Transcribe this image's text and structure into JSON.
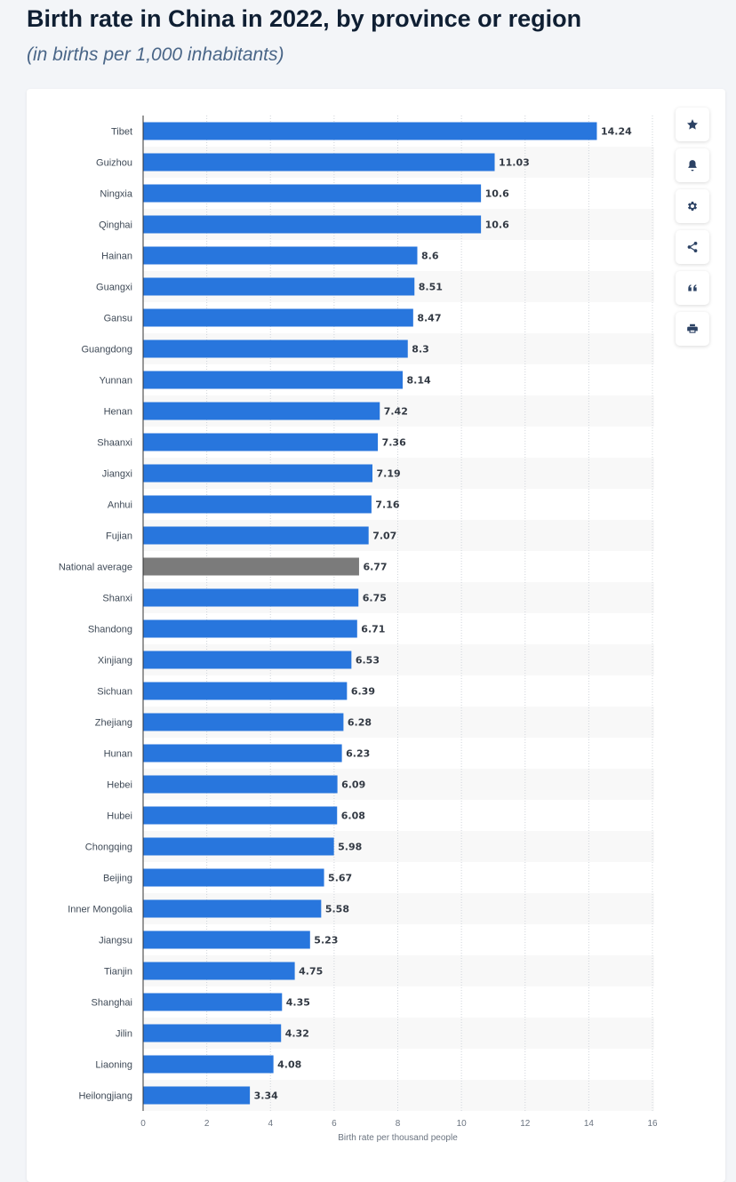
{
  "page": {
    "title": "Birth rate in China in 2022, by province or region",
    "subtitle": "(in births per 1,000 inhabitants)"
  },
  "toolbar": {
    "buttons": [
      {
        "name": "favorite-button",
        "icon": "star-icon"
      },
      {
        "name": "notification-button",
        "icon": "bell-icon"
      },
      {
        "name": "settings-button",
        "icon": "gear-icon"
      },
      {
        "name": "share-button",
        "icon": "share-icon"
      },
      {
        "name": "cite-button",
        "icon": "quote-icon"
      },
      {
        "name": "print-button",
        "icon": "printer-icon"
      }
    ]
  },
  "colors": {
    "bar": "#2876dd",
    "highlight_bar": "#7b7b7b",
    "stripe": "#f8f8f8",
    "grid": "#cfd4da"
  },
  "chart_data": {
    "type": "bar",
    "orientation": "horizontal",
    "title": "Birth rate in China in 2022, by province or region",
    "subtitle": "(in births per 1,000 inhabitants)",
    "xlabel": "Birth rate per thousand people",
    "ylabel": "",
    "xlim": [
      0,
      16
    ],
    "xticks": [
      0,
      2,
      4,
      6,
      8,
      10,
      12,
      14,
      16
    ],
    "grid": true,
    "highlight": "National average",
    "categories": [
      "Tibet",
      "Guizhou",
      "Ningxia",
      "Qinghai",
      "Hainan",
      "Guangxi",
      "Gansu",
      "Guangdong",
      "Yunnan",
      "Henan",
      "Shaanxi",
      "Jiangxi",
      "Anhui",
      "Fujian",
      "National average",
      "Shanxi",
      "Shandong",
      "Xinjiang",
      "Sichuan",
      "Zhejiang",
      "Hunan",
      "Hebei",
      "Hubei",
      "Chongqing",
      "Beijing",
      "Inner Mongolia",
      "Jiangsu",
      "Tianjin",
      "Shanghai",
      "Jilin",
      "Liaoning",
      "Heilongjiang"
    ],
    "values": [
      14.24,
      11.03,
      10.6,
      10.6,
      8.6,
      8.51,
      8.47,
      8.3,
      8.14,
      7.42,
      7.36,
      7.19,
      7.16,
      7.07,
      6.77,
      6.75,
      6.71,
      6.53,
      6.39,
      6.28,
      6.23,
      6.09,
      6.08,
      5.98,
      5.67,
      5.58,
      5.23,
      4.75,
      4.35,
      4.32,
      4.08,
      3.34
    ],
    "value_labels": [
      "14.24",
      "11.03",
      "10.6",
      "10.6",
      "8.6",
      "8.51",
      "8.47",
      "8.3",
      "8.14",
      "7.42",
      "7.36",
      "7.19",
      "7.16",
      "7.07",
      "6.77",
      "6.75",
      "6.71",
      "6.53",
      "6.39",
      "6.28",
      "6.23",
      "6.09",
      "6.08",
      "5.98",
      "5.67",
      "5.58",
      "5.23",
      "4.75",
      "4.35",
      "4.32",
      "4.08",
      "3.34"
    ]
  }
}
